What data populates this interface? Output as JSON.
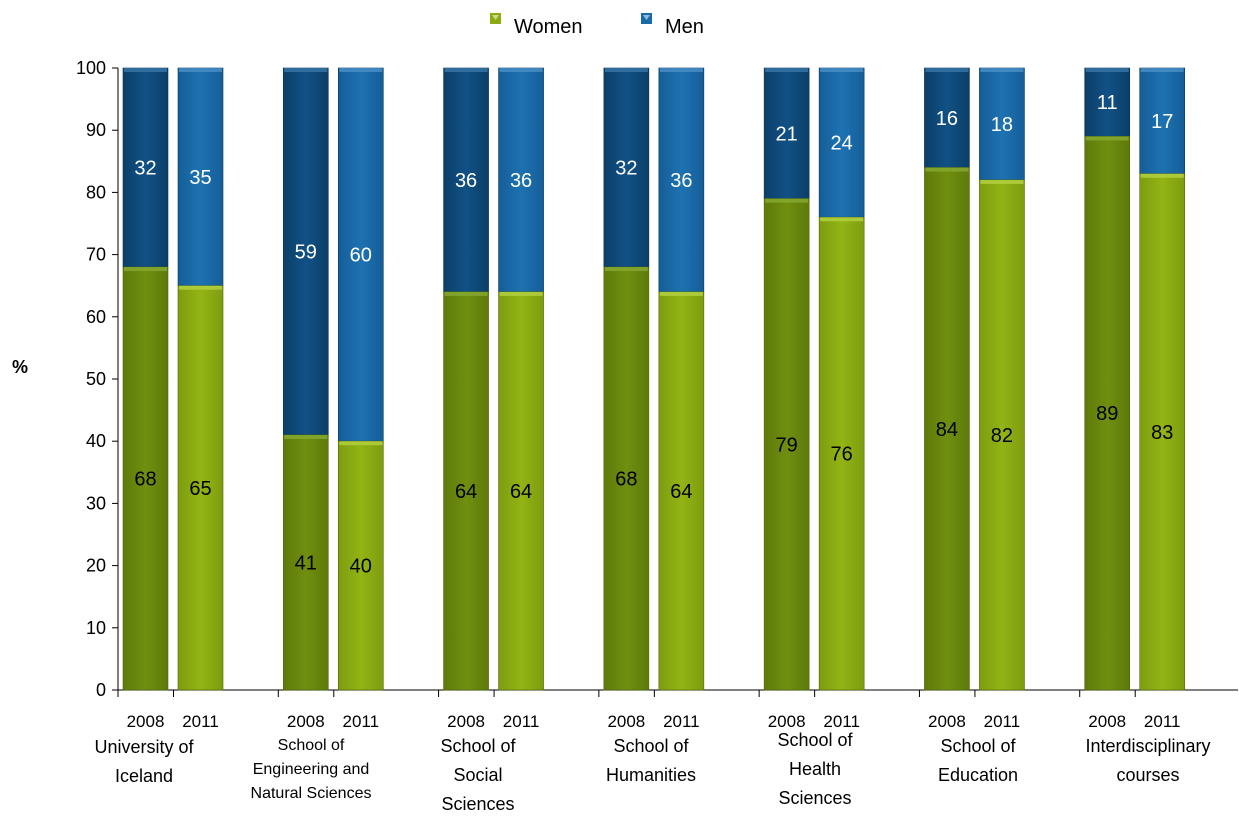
{
  "chart_data": {
    "type": "bar",
    "stacked": true,
    "ylabel": "%",
    "ylim": [
      0,
      100
    ],
    "yticks": [
      0,
      10,
      20,
      30,
      40,
      50,
      60,
      70,
      80,
      90,
      100
    ],
    "legend": {
      "position": "top-center",
      "entries": [
        {
          "name": "Women",
          "color": "#8aac12"
        },
        {
          "name": "Men",
          "color": "#1a6aa8"
        }
      ]
    },
    "groups": [
      {
        "label_lines": [
          "University of",
          "Iceland"
        ],
        "bars": [
          {
            "year": "2008",
            "women": 68,
            "men": 32
          },
          {
            "year": "2011",
            "women": 65,
            "men": 35
          }
        ]
      },
      {
        "label_lines": [
          "School of",
          "Engineering and",
          "Natural Sciences"
        ],
        "small": true,
        "bars": [
          {
            "year": "2008",
            "women": 41,
            "men": 59
          },
          {
            "year": "2011",
            "women": 40,
            "men": 60
          }
        ]
      },
      {
        "label_lines": [
          "School of",
          "Social",
          "Sciences"
        ],
        "bars": [
          {
            "year": "2008",
            "women": 64,
            "men": 36
          },
          {
            "year": "2011",
            "women": 64,
            "men": 36
          }
        ]
      },
      {
        "label_lines": [
          "School of",
          "Humanities"
        ],
        "bars": [
          {
            "year": "2008",
            "women": 68,
            "men": 32
          },
          {
            "year": "2011",
            "women": 64,
            "men": 36
          }
        ]
      },
      {
        "label_lines": [
          "School of",
          "Health",
          "Sciences"
        ],
        "bars": [
          {
            "year": "2008",
            "women": 79,
            "men": 21
          },
          {
            "year": "2011",
            "women": 76,
            "men": 24
          }
        ]
      },
      {
        "label_lines": [
          "School of",
          "Education"
        ],
        "bars": [
          {
            "year": "2008",
            "women": 84,
            "men": 16
          },
          {
            "year": "2011",
            "women": 82,
            "men": 18
          }
        ]
      },
      {
        "label_lines": [
          "Interdisciplinary",
          "courses"
        ],
        "bars": [
          {
            "year": "2008",
            "women": 89,
            "men": 11
          },
          {
            "year": "2011",
            "women": 83,
            "men": 17
          }
        ]
      }
    ],
    "colors": {
      "women_2008": "#6b8a0e",
      "women_2011": "#8aac12",
      "men_2008": "#0e4a78",
      "men_2011": "#1a6aa8"
    }
  }
}
